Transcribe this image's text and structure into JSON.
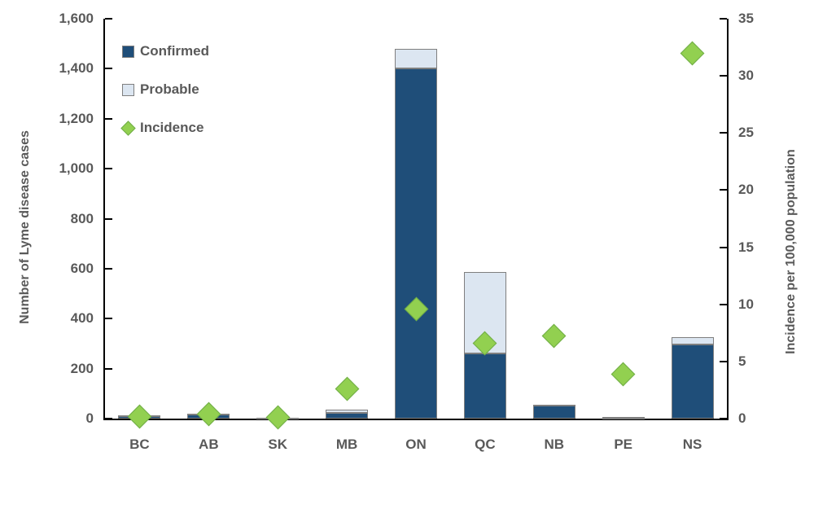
{
  "chart_data": {
    "type": "combo-stacked-bar-scatter",
    "title": "",
    "categories": [
      "BC",
      "AB",
      "SK",
      "MB",
      "ON",
      "QC",
      "NB",
      "PE",
      "NS"
    ],
    "series": [
      {
        "name": "Confirmed",
        "type": "bar",
        "stack": "cases",
        "axis": "left",
        "values": [
          12,
          17,
          2,
          24,
          1400,
          260,
          52,
          4,
          295
        ]
      },
      {
        "name": "Probable",
        "type": "bar",
        "stack": "cases",
        "axis": "left",
        "values": [
          2,
          3,
          0,
          12,
          80,
          325,
          3,
          2,
          30
        ]
      },
      {
        "name": "Incidence",
        "type": "scatter",
        "marker": "diamond",
        "axis": "right",
        "values": [
          0.2,
          0.4,
          0.1,
          2.6,
          9.6,
          6.6,
          7.2,
          3.9,
          32.0
        ]
      }
    ],
    "left_axis": {
      "label": "Number of Lyme disease cases",
      "min": 0,
      "max": 1600,
      "step": 200,
      "tick_labels": [
        "0",
        "200",
        "400",
        "600",
        "800",
        "1,000",
        "1,200",
        "1,400",
        "1,600"
      ]
    },
    "right_axis": {
      "label": "Incidence per 100,000 population",
      "min": 0,
      "max": 35,
      "step": 5,
      "tick_labels": [
        "0",
        "5",
        "10",
        "15",
        "20",
        "25",
        "30",
        "35"
      ]
    },
    "legend": {
      "position": "top-left-inside",
      "items": [
        "Confirmed",
        "Probable",
        "Incidence"
      ]
    },
    "grid": false,
    "colors": {
      "confirmed_fill": "#1F4E79",
      "probable_fill": "#DCE6F1",
      "bar_border": "#7F7F7F",
      "incidence_fill": "#92D050",
      "incidence_border": "#70AD47",
      "axis_line": "#000000",
      "text": "#595959"
    }
  }
}
